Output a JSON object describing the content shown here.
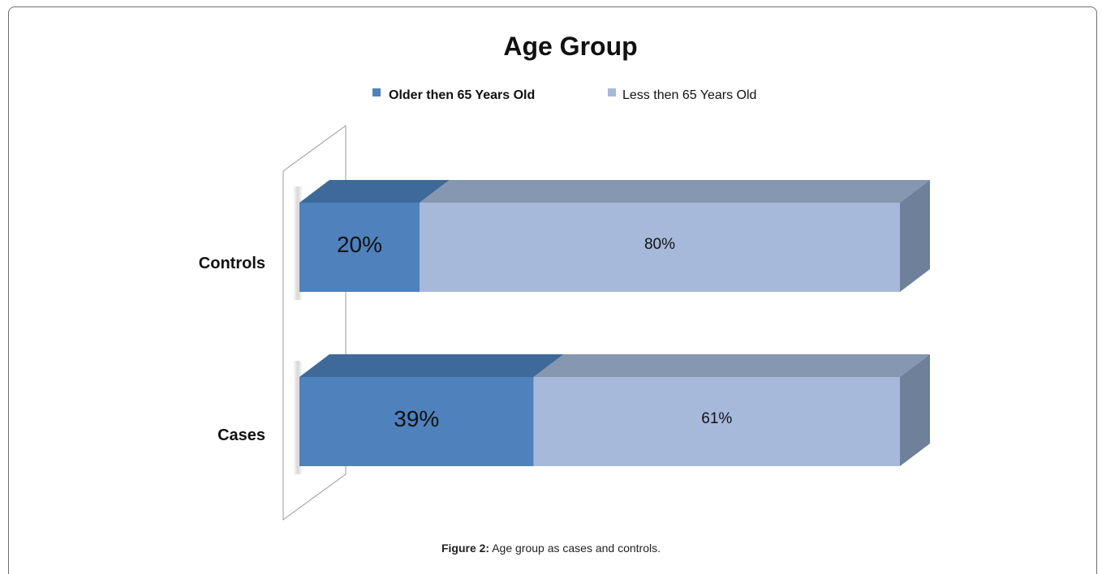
{
  "chart_data": {
    "type": "bar",
    "orientation": "horizontal",
    "stacked": true,
    "percent_stacked": true,
    "style": "3d",
    "title": "Age Group",
    "categories": [
      "Controls",
      "Cases"
    ],
    "series": [
      {
        "name": "Older then 65 Years Old",
        "values": [
          20,
          39
        ],
        "labels": [
          "20%",
          "39%"
        ],
        "color": "#4F81BD"
      },
      {
        "name": "Less then 65 Years Old",
        "values": [
          80,
          61
        ],
        "labels": [
          "80%",
          "61%"
        ],
        "color": "#A6B9DB"
      }
    ],
    "xlim": [
      0,
      100
    ],
    "grid": false,
    "legend_position": "top"
  },
  "caption": {
    "label": "Figure 2:",
    "text": " Age group as cases and controls."
  }
}
